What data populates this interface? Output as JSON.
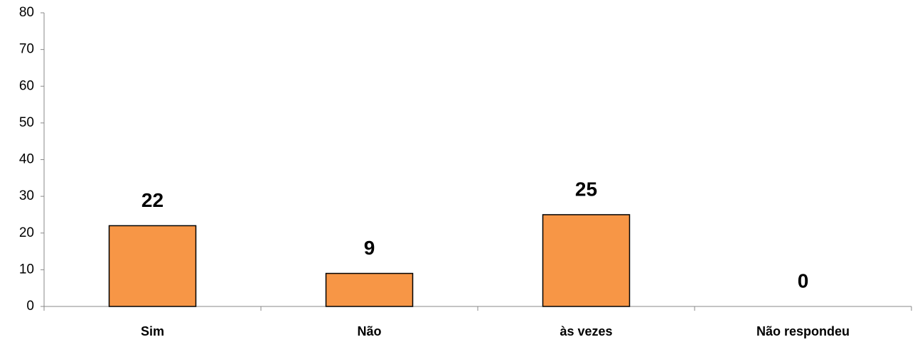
{
  "chart_data": {
    "type": "bar",
    "categories": [
      "Sim",
      "Não",
      "às vezes",
      "Não respondeu"
    ],
    "values": [
      22,
      9,
      25,
      0
    ],
    "color": "#f79646",
    "ylim": [
      0,
      80
    ],
    "yticks": [
      0,
      10,
      20,
      30,
      40,
      50,
      60,
      70,
      80
    ],
    "grid": false
  }
}
